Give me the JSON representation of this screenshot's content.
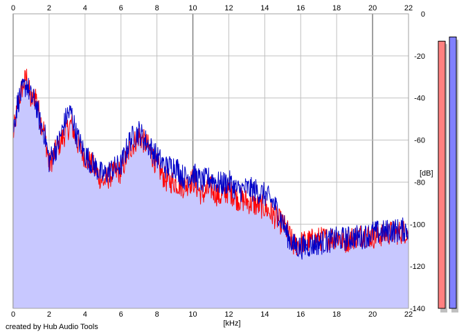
{
  "credit": "created by Hub Audio Tools",
  "colors": {
    "background": "#ffffff",
    "plot_background": "#ffffff",
    "fill": "#c8c8ff",
    "grid": "#c0c0c0",
    "grid_major": "#808080",
    "left_channel": "#ff0000",
    "right_channel": "#0000c8",
    "left_meter": "#ff8080",
    "right_meter": "#8080ff",
    "meter_shadow": "#c0c0c0"
  },
  "chart_data": {
    "type": "line",
    "xlabel": "[kHz]",
    "ylabel": "[dB]",
    "xlim": [
      0,
      22
    ],
    "ylim": [
      -140,
      0
    ],
    "x_ticks": [
      0,
      2,
      4,
      6,
      8,
      10,
      12,
      14,
      16,
      18,
      20,
      22
    ],
    "y_ticks": [
      0,
      -20,
      -40,
      -60,
      -80,
      -100,
      -120,
      -140
    ],
    "x_tick_labels": [
      "0",
      "2",
      "4",
      "6",
      "8",
      "10",
      "12",
      "14",
      "16",
      "18",
      "20",
      "22"
    ],
    "y_tick_labels": [
      "0",
      "-20",
      "-40",
      "-60",
      "-80",
      "-100",
      "-120",
      "-140"
    ],
    "grid": true,
    "series": [
      {
        "channel": "left",
        "x": [
          0,
          0.25,
          0.5,
          0.75,
          1.0,
          1.25,
          1.5,
          1.75,
          2.0,
          2.5,
          3.0,
          3.25,
          3.5,
          4.0,
          4.5,
          5.0,
          5.5,
          6.0,
          6.5,
          7.0,
          7.5,
          8.0,
          8.5,
          9.0,
          9.5,
          10.0,
          10.5,
          11.0,
          11.5,
          12.0,
          12.5,
          13.0,
          13.5,
          14.0,
          14.5,
          15.0,
          15.3,
          15.6,
          16.0,
          16.5,
          17.0,
          17.5,
          18.0,
          18.5,
          19.0,
          19.5,
          20.0,
          20.5,
          21.0,
          21.5,
          22.0
        ],
        "y": [
          -58,
          -44,
          -35,
          -30,
          -42,
          -38,
          -50,
          -56,
          -72,
          -63,
          -55,
          -52,
          -60,
          -68,
          -73,
          -80,
          -76,
          -75,
          -64,
          -58,
          -63,
          -72,
          -79,
          -80,
          -82,
          -79,
          -86,
          -83,
          -87,
          -84,
          -88,
          -89,
          -91,
          -92,
          -96,
          -100,
          -104,
          -110,
          -109,
          -108,
          -107,
          -107,
          -106,
          -108,
          -106,
          -105,
          -106,
          -105,
          -104,
          -104,
          -103
        ]
      },
      {
        "channel": "right",
        "x": [
          0,
          0.25,
          0.5,
          0.75,
          1.0,
          1.25,
          1.5,
          1.75,
          2.0,
          2.5,
          3.0,
          3.25,
          3.5,
          4.0,
          4.5,
          5.0,
          5.5,
          6.0,
          6.5,
          7.0,
          7.5,
          8.0,
          8.5,
          9.0,
          9.5,
          10.0,
          10.5,
          11.0,
          11.5,
          12.0,
          12.5,
          13.0,
          13.5,
          14.0,
          14.5,
          15.0,
          15.3,
          15.6,
          16.0,
          16.5,
          17.0,
          17.5,
          18.0,
          18.5,
          19.0,
          19.5,
          20.0,
          20.5,
          21.0,
          21.5,
          22.0
        ],
        "y": [
          -55,
          -42,
          -37,
          -33,
          -40,
          -42,
          -52,
          -57,
          -70,
          -62,
          -48,
          -47,
          -57,
          -67,
          -72,
          -77,
          -74,
          -72,
          -60,
          -56,
          -62,
          -68,
          -73,
          -72,
          -78,
          -76,
          -80,
          -78,
          -81,
          -80,
          -84,
          -83,
          -84,
          -86,
          -90,
          -99,
          -106,
          -110,
          -111,
          -110,
          -109,
          -108,
          -107,
          -107,
          -106,
          -106,
          -104,
          -104,
          -103,
          -103,
          -102
        ]
      }
    ],
    "level_meters": [
      {
        "channel": "left",
        "value_db": -13
      },
      {
        "channel": "right",
        "value_db": -11
      }
    ]
  }
}
